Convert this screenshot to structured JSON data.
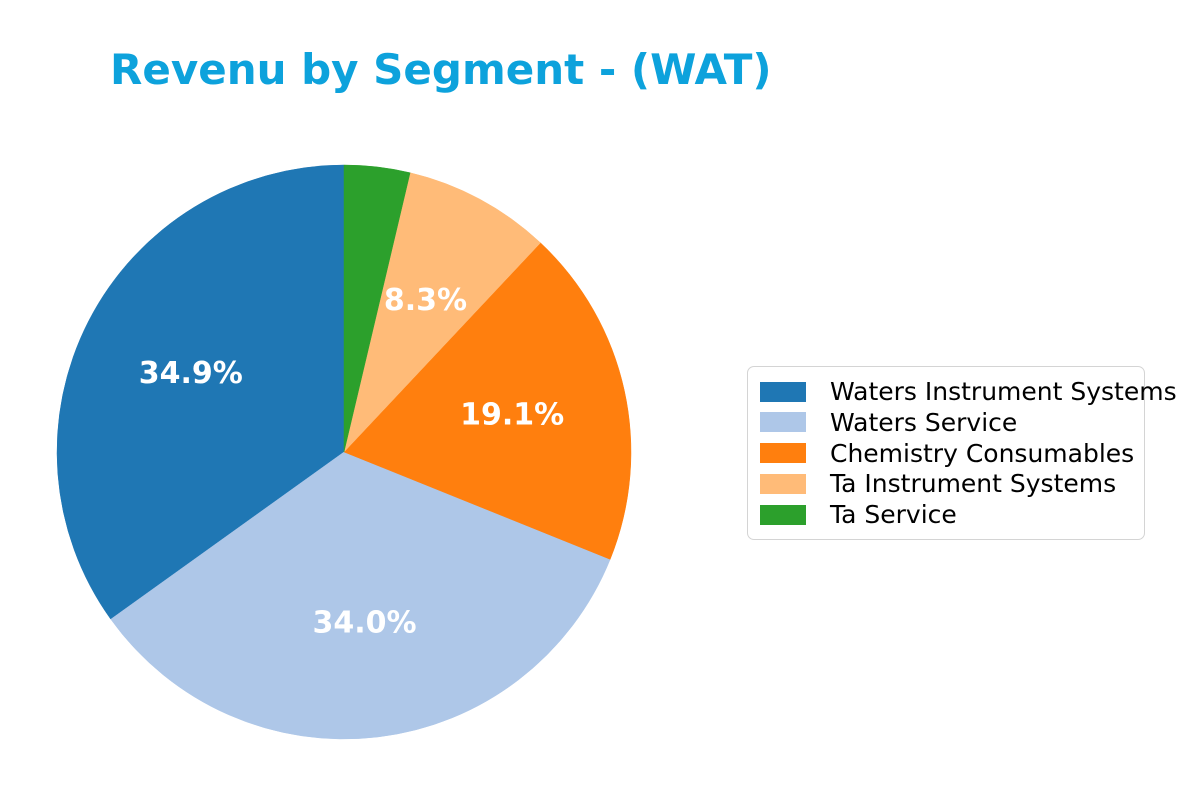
{
  "chart_data": {
    "type": "pie",
    "title": "Revenu by Segment - (WAT)",
    "title_color": "#0da2dc",
    "background_color": "#ffffff",
    "start_angle": 90,
    "direction": "counterclockwise",
    "pct_label_color": "#ffffff",
    "legend_position": "center right",
    "slices": [
      {
        "label": "Waters Instrument Systems",
        "value": 34.9,
        "pct_label": "34.9%",
        "color": "#1f77b4"
      },
      {
        "label": "Waters Service",
        "value": 34.0,
        "pct_label": "34.0%",
        "color": "#aec7e8"
      },
      {
        "label": "Chemistry Consumables",
        "value": 19.1,
        "pct_label": "19.1%",
        "color": "#ff7f0e"
      },
      {
        "label": "Ta Instrument Systems",
        "value": 8.3,
        "pct_label": "8.3%",
        "color": "#ffbb78"
      },
      {
        "label": "Ta Service",
        "value": 3.7,
        "pct_label": "",
        "color": "#2ca02c"
      }
    ]
  }
}
